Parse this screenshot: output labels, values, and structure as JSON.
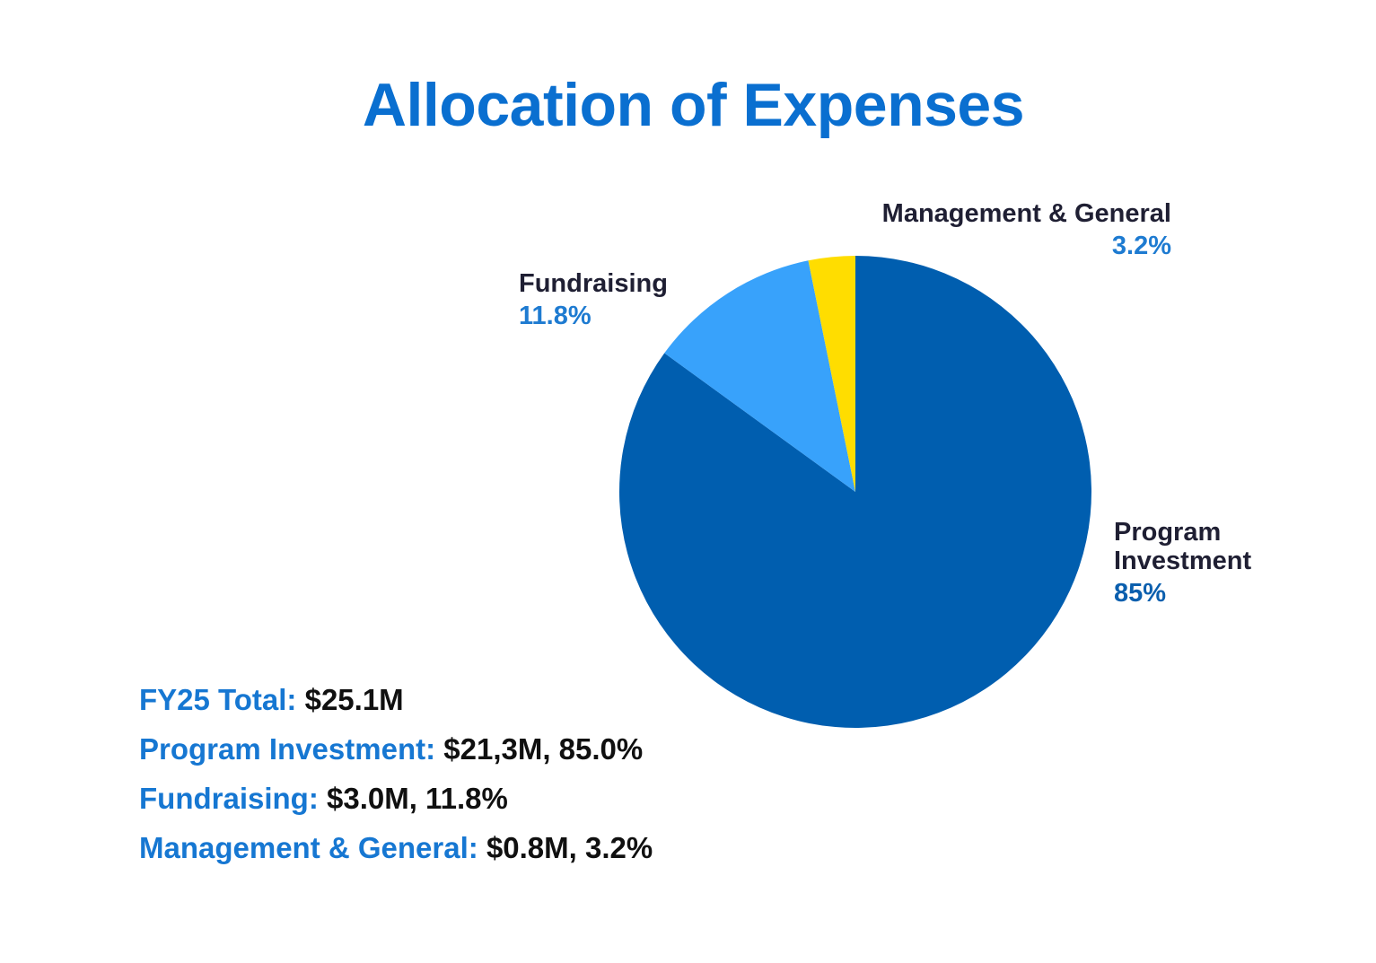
{
  "title": "Allocation of Expenses",
  "chart_data": {
    "type": "pie",
    "title": "Allocation of Expenses",
    "start_angle_deg": 0,
    "direction": "clockwise",
    "slices": [
      {
        "label": "Program Investment",
        "value": 85.0,
        "pct_label": "85%",
        "color": "#005eaf"
      },
      {
        "label": "Fundraising",
        "value": 11.8,
        "pct_label": "11.8%",
        "color": "#38a2fb"
      },
      {
        "label": "Management & General",
        "value": 3.2,
        "pct_label": "3.2%",
        "color": "#ffdd00"
      }
    ]
  },
  "labels": {
    "program": {
      "name_line1": "Program",
      "name_line2": "Investment",
      "pct": "85%"
    },
    "fundraising": {
      "name": "Fundraising",
      "pct": "11.8%"
    },
    "management": {
      "name": "Management & General",
      "pct": "3.2%"
    }
  },
  "summary": {
    "total": {
      "key": "FY25 Total:",
      "value": "$25.1M"
    },
    "program": {
      "key": "Program Investment:",
      "value": "$21,3M, 85.0%"
    },
    "fundraising": {
      "key": "Fundraising:",
      "value": "$3.0M, 11.8%"
    },
    "management": {
      "key": "Management & General:",
      "value": "$0.8M, 3.2%"
    }
  }
}
